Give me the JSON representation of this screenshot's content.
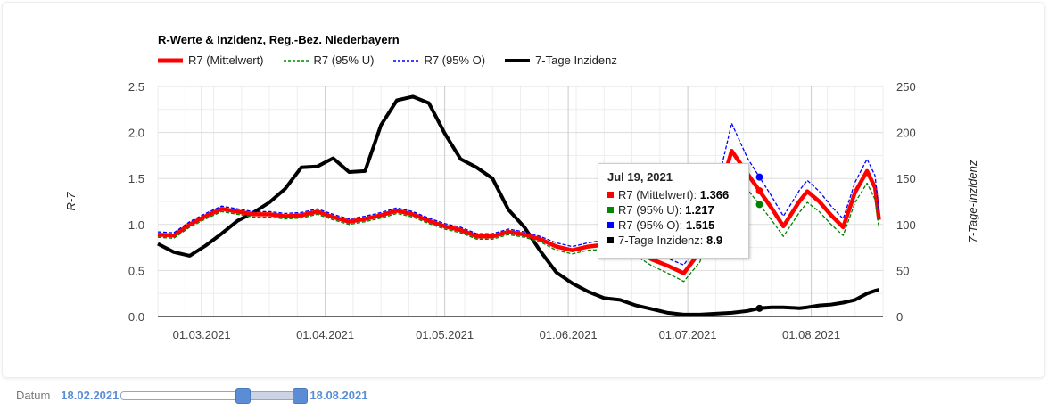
{
  "chart_data": {
    "type": "line",
    "title": "R-Werte & Inzidenz, Reg.-Bez. Niederbayern",
    "ylabel_left": "R-7",
    "ylabel_right": "7-Tage-Inzidenz",
    "ylim_left": [
      0,
      2.5
    ],
    "ylim_right": [
      0,
      250
    ],
    "yticks_left": [
      "0.0",
      "0.5",
      "1.0",
      "1.5",
      "2.0",
      "2.5"
    ],
    "yticks_right": [
      "0",
      "50",
      "100",
      "150",
      "200",
      "250"
    ],
    "xlim": [
      "2021-02-18",
      "2021-08-19"
    ],
    "xticks": [
      {
        "date": "2021-03-01",
        "label": "01.03.2021"
      },
      {
        "date": "2021-04-01",
        "label": "01.04.2021"
      },
      {
        "date": "2021-05-01",
        "label": "01.05.2021"
      },
      {
        "date": "2021-06-01",
        "label": "01.06.2021"
      },
      {
        "date": "2021-07-01",
        "label": "01.07.2021"
      },
      {
        "date": "2021-08-01",
        "label": "01.08.2021"
      }
    ],
    "grid": true,
    "legend_position": "top-left",
    "x": [
      "2021-02-18",
      "2021-02-22",
      "2021-02-26",
      "2021-03-02",
      "2021-03-06",
      "2021-03-10",
      "2021-03-14",
      "2021-03-18",
      "2021-03-22",
      "2021-03-26",
      "2021-03-30",
      "2021-04-03",
      "2021-04-07",
      "2021-04-11",
      "2021-04-15",
      "2021-04-19",
      "2021-04-23",
      "2021-04-27",
      "2021-05-01",
      "2021-05-05",
      "2021-05-09",
      "2021-05-13",
      "2021-05-17",
      "2021-05-21",
      "2021-05-25",
      "2021-05-29",
      "2021-06-02",
      "2021-06-06",
      "2021-06-10",
      "2021-06-14",
      "2021-06-18",
      "2021-06-22",
      "2021-06-26",
      "2021-06-30",
      "2021-07-04",
      "2021-07-08",
      "2021-07-12",
      "2021-07-16",
      "2021-07-19",
      "2021-07-22",
      "2021-07-25",
      "2021-07-29",
      "2021-07-31",
      "2021-08-03",
      "2021-08-06",
      "2021-08-09",
      "2021-08-12",
      "2021-08-15",
      "2021-08-17",
      "2021-08-18"
    ],
    "series": [
      {
        "name": "R7 (Mittelwert)",
        "axis": "left",
        "color": "#ff0000",
        "style": "solid",
        "values": [
          0.89,
          0.88,
          1.0,
          1.09,
          1.17,
          1.14,
          1.11,
          1.11,
          1.09,
          1.1,
          1.14,
          1.08,
          1.03,
          1.06,
          1.1,
          1.15,
          1.11,
          1.04,
          0.98,
          0.94,
          0.87,
          0.87,
          0.92,
          0.89,
          0.84,
          0.76,
          0.72,
          0.76,
          0.78,
          0.78,
          0.72,
          0.62,
          0.55,
          0.47,
          0.7,
          1.2,
          1.8,
          1.55,
          1.366,
          1.18,
          0.98,
          1.25,
          1.36,
          1.25,
          1.1,
          0.97,
          1.35,
          1.58,
          1.4,
          1.05
        ]
      },
      {
        "name": "R7 (95% U)",
        "axis": "left",
        "color": "#008000",
        "style": "dashed",
        "values": [
          0.86,
          0.85,
          0.97,
          1.06,
          1.14,
          1.11,
          1.08,
          1.08,
          1.06,
          1.07,
          1.11,
          1.05,
          1.0,
          1.03,
          1.07,
          1.12,
          1.08,
          1.01,
          0.95,
          0.91,
          0.84,
          0.84,
          0.89,
          0.86,
          0.81,
          0.72,
          0.68,
          0.72,
          0.73,
          0.73,
          0.66,
          0.55,
          0.47,
          0.38,
          0.59,
          1.05,
          1.5,
          1.38,
          1.217,
          1.05,
          0.87,
          1.13,
          1.24,
          1.14,
          1.0,
          0.88,
          1.24,
          1.45,
          1.27,
          0.96
        ]
      },
      {
        "name": "R7 (95% O)",
        "axis": "left",
        "color": "#0000ff",
        "style": "dashed",
        "values": [
          0.92,
          0.91,
          1.03,
          1.12,
          1.2,
          1.17,
          1.14,
          1.14,
          1.12,
          1.13,
          1.17,
          1.11,
          1.06,
          1.09,
          1.13,
          1.18,
          1.14,
          1.07,
          1.01,
          0.97,
          0.9,
          0.9,
          0.95,
          0.92,
          0.87,
          0.8,
          0.76,
          0.8,
          0.83,
          0.83,
          0.78,
          0.69,
          0.63,
          0.56,
          0.81,
          1.35,
          2.1,
          1.72,
          1.515,
          1.31,
          1.09,
          1.37,
          1.48,
          1.36,
          1.2,
          1.06,
          1.46,
          1.71,
          1.53,
          1.14
        ]
      },
      {
        "name": "7-Tage Inzidenz",
        "axis": "right",
        "color": "#000000",
        "style": "solid",
        "values": [
          79,
          70,
          66,
          77,
          90,
          104,
          113,
          124,
          139,
          162,
          163,
          172,
          157,
          158,
          208,
          235,
          239,
          232,
          199,
          171,
          162,
          150,
          116,
          97,
          71,
          48,
          36,
          27,
          20,
          18,
          12,
          8,
          4,
          2,
          2,
          3,
          4,
          6,
          8.9,
          10,
          10,
          9,
          10,
          12,
          13,
          15,
          18,
          25,
          28,
          29
        ]
      }
    ],
    "tooltip": {
      "date": "Jul 19, 2021",
      "rows": [
        {
          "label": "R7 (Mittelwert): ",
          "value": "1.366",
          "color": "#ff0000"
        },
        {
          "label": "R7 (95% U): ",
          "value": "1.217",
          "color": "#008000"
        },
        {
          "label": "R7 (95% O): ",
          "value": "1.515",
          "color": "#0000ff"
        },
        {
          "label": "7-Tage Inzidenz: ",
          "value": "8.9",
          "color": "#000000"
        }
      ]
    }
  },
  "slider": {
    "label": "Datum",
    "min_label": "18.02.2021",
    "max_label": "18.08.2021",
    "range_start_fraction": 0.65,
    "range_end_fraction": 0.97
  }
}
